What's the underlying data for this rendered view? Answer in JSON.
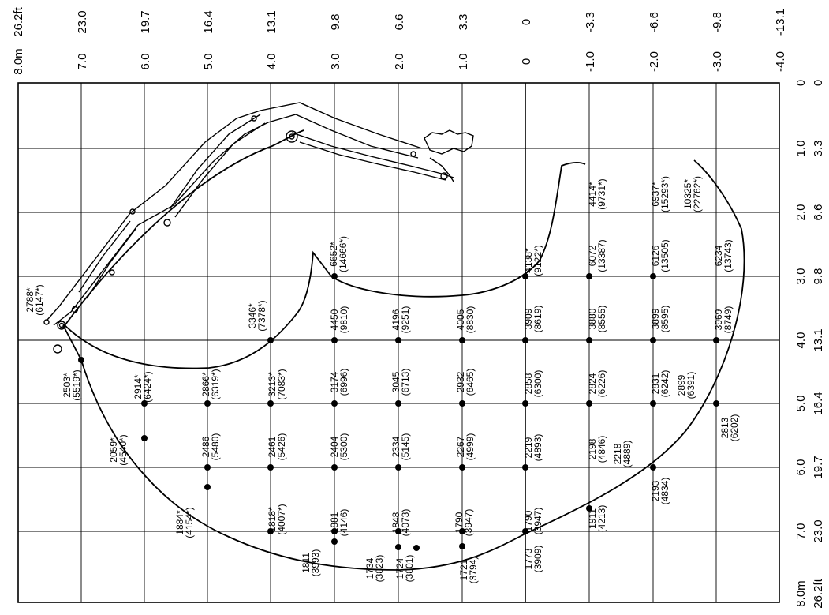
{
  "diagram": {
    "axis_labels": {
      "top_metric": [
        "7.0",
        "6.0",
        "5.0",
        "4.0",
        "3.0",
        "2.0",
        "1.0",
        "0",
        "-1.0",
        "-2.0",
        "-3.0",
        "-4.0"
      ],
      "top_feet": [
        "23.0",
        "19.7",
        "16.4",
        "13.1",
        "9.8",
        "6.6",
        "3.3",
        "0",
        "-3.3",
        "-6.6",
        "-9.8",
        "-13.1"
      ],
      "top_corner_metric": "8.0m",
      "top_corner_feet": "26.2ft",
      "right_metric": [
        "0",
        "1.0",
        "2.0",
        "3.0",
        "4.0",
        "5.0",
        "6.0",
        "7.0"
      ],
      "right_feet": [
        "0",
        "3.3",
        "6.6",
        "9.8",
        "13.1",
        "16.4",
        "19.7",
        "23.0"
      ],
      "right_corner_metric": "8.0m",
      "right_corner_feet": "26.2ft"
    },
    "capacity_points": [
      {
        "kg": "2788*",
        "lb": "(6147*)"
      },
      {
        "kg": "2503*",
        "lb": "(5519*)"
      },
      {
        "kg": "2914*",
        "lb": "(6424*)"
      },
      {
        "kg": "2866*",
        "lb": "(6319*)"
      },
      {
        "kg": "3213*",
        "lb": "(7083*)"
      },
      {
        "kg": "3346*",
        "lb": "(7378*)"
      },
      {
        "kg": "6652*",
        "lb": "(14666*)"
      },
      {
        "kg": "4450",
        "lb": "(9810)"
      },
      {
        "kg": "4196",
        "lb": "(9251)"
      },
      {
        "kg": "4005",
        "lb": "(8830)"
      },
      {
        "kg": "3174",
        "lb": "(6996)"
      },
      {
        "kg": "3045",
        "lb": "(6713)"
      },
      {
        "kg": "2932",
        "lb": "(6465)"
      },
      {
        "kg": "2059*",
        "lb": "(4540*)"
      },
      {
        "kg": "2486",
        "lb": "(5480)"
      },
      {
        "kg": "2461",
        "lb": "(5426)"
      },
      {
        "kg": "2404",
        "lb": "(5300)"
      },
      {
        "kg": "2334",
        "lb": "(5145)"
      },
      {
        "kg": "2267",
        "lb": "(4999)"
      },
      {
        "kg": "1884*",
        "lb": "(4154*)"
      },
      {
        "kg": "1818*",
        "lb": "(4007*)"
      },
      {
        "kg": "1881",
        "lb": "(4146)"
      },
      {
        "kg": "1848",
        "lb": "(4073)"
      },
      {
        "kg": "1790",
        "lb": "(3947)"
      },
      {
        "kg": "1811",
        "lb": "(3993)"
      },
      {
        "kg": "1734",
        "lb": "(3823)"
      },
      {
        "kg": "1724",
        "lb": "(3801)"
      },
      {
        "kg": "1721",
        "lb": "(3794)"
      },
      {
        "kg": "4138*",
        "lb": "(9122*)"
      },
      {
        "kg": "3909",
        "lb": "(8619)"
      },
      {
        "kg": "2858",
        "lb": "(6300)"
      },
      {
        "kg": "2219",
        "lb": "(4893)"
      },
      {
        "kg": "1790",
        "lb": "(3947)"
      },
      {
        "kg": "1773",
        "lb": "(3909)"
      },
      {
        "kg": "1911",
        "lb": "(4213)"
      },
      {
        "kg": "4414*",
        "lb": "(9731*)"
      },
      {
        "kg": "6072",
        "lb": "(13387)"
      },
      {
        "kg": "3880",
        "lb": "(8555)"
      },
      {
        "kg": "2824",
        "lb": "(6226)"
      },
      {
        "kg": "2198",
        "lb": "(4846)"
      },
      {
        "kg": "2218",
        "lb": "(4889)"
      },
      {
        "kg": "6937*",
        "lb": "(15293*)"
      },
      {
        "kg": "10325*",
        "lb": "(22762*)"
      },
      {
        "kg": "6126",
        "lb": "(13505)"
      },
      {
        "kg": "3899",
        "lb": "(8595)"
      },
      {
        "kg": "2831",
        "lb": "(6242)"
      },
      {
        "kg": "2193",
        "lb": "(4834)"
      },
      {
        "kg": "2899",
        "lb": "(6391)"
      },
      {
        "kg": "6234",
        "lb": "(13743)"
      },
      {
        "kg": "3969",
        "lb": "(8749)"
      },
      {
        "kg": "2813",
        "lb": "(6202)"
      }
    ]
  }
}
